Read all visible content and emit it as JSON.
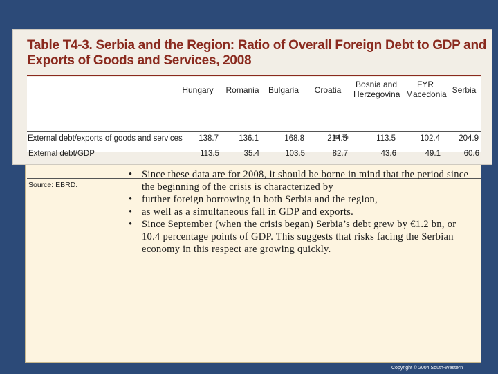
{
  "table": {
    "title": "Table T4-3. Serbia and the Region: Ratio of Overall Foreign Debt to GDP and Exports of Goods and Services, 2008",
    "columns": [
      "Hungary",
      "Romania",
      "Bulgaria",
      "Croatia",
      "Bosnia and Herzegovina",
      "FYR Macedonia",
      "Serbia"
    ],
    "unit": "in %",
    "rows": [
      {
        "label": "External debt/GDP",
        "values": [
          "113.5",
          "35.4",
          "103.5",
          "82.7",
          "43.6",
          "49.1",
          "60.6"
        ]
      },
      {
        "label": "External debt/exports of goods and services",
        "values": [
          "138.7",
          "136.1",
          "168.8",
          "214.5",
          "113.5",
          "102.4",
          "204.9"
        ]
      }
    ],
    "source": "Source: EBRD."
  },
  "bullets": [
    "Since these data are for 2008, it should be borne in mind that the period since the beginning of the crisis is characterized by",
    "further foreign borrowing in both Serbia and the region,",
    "as well as a simultaneous fall in GDP and exports.",
    "Since September (when the crisis began) Serbia’s debt grew by €1.2 bn, or 10.4 percentage points of GDP. This suggests that risks facing the Serbian economy in this respect are growing quickly."
  ],
  "bullet_symbol": "•",
  "footer": "Copyright © 2004 South-Western"
}
